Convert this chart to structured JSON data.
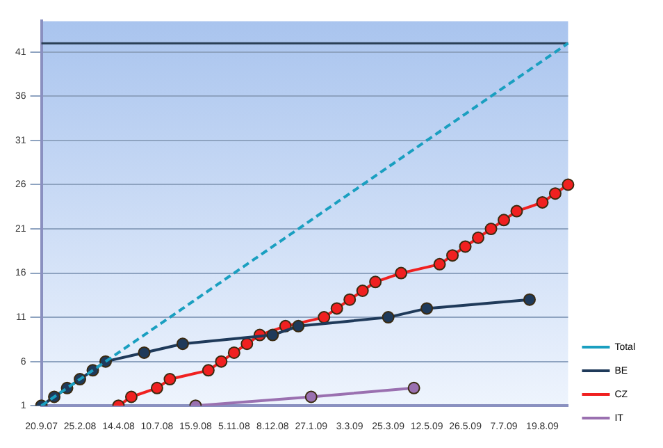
{
  "chart_data": {
    "type": "line",
    "categories": [
      "20.9.07",
      null,
      null,
      "25.2.08",
      null,
      null,
      "14.4.08",
      null,
      null,
      "10.7.08",
      null,
      null,
      "15.9.08",
      null,
      null,
      "5.11.08",
      null,
      null,
      "8.12.08",
      null,
      null,
      "27.1.09",
      null,
      null,
      "3.3.09",
      null,
      null,
      "25.3.09",
      null,
      null,
      "12.5.09",
      null,
      null,
      "26.5.09",
      null,
      null,
      "7.7.09",
      null,
      null,
      "19.8.09",
      null,
      null
    ],
    "series": [
      {
        "name": "Total",
        "color": "#1a9fc0",
        "marker": "none",
        "line_style": "dashed",
        "values": [
          1,
          2,
          3,
          4,
          5,
          6,
          7,
          8,
          9,
          10,
          11,
          12,
          13,
          14,
          15,
          16,
          17,
          18,
          19,
          20,
          21,
          22,
          23,
          24,
          25,
          26,
          27,
          28,
          29,
          30,
          31,
          32,
          33,
          34,
          35,
          36,
          37,
          38,
          39,
          40,
          41,
          42
        ]
      },
      {
        "name": "BE",
        "color": "#1f3a5a",
        "values": [
          1,
          2,
          3,
          4,
          5,
          6,
          null,
          null,
          7,
          null,
          null,
          8,
          null,
          null,
          null,
          null,
          null,
          null,
          9,
          null,
          10,
          null,
          null,
          null,
          null,
          null,
          null,
          11,
          null,
          null,
          12,
          null,
          null,
          null,
          null,
          null,
          null,
          null,
          13,
          null,
          null,
          null
        ]
      },
      {
        "name": "CZ",
        "color": "#f02020",
        "values": [
          null,
          null,
          null,
          null,
          null,
          null,
          1,
          2,
          null,
          3,
          4,
          null,
          null,
          5,
          6,
          7,
          8,
          9,
          null,
          10,
          null,
          null,
          11,
          12,
          13,
          14,
          15,
          null,
          16,
          null,
          null,
          17,
          18,
          19,
          20,
          21,
          22,
          23,
          null,
          24,
          25,
          26
        ]
      },
      {
        "name": "IT",
        "color": "#9a70b0",
        "values": [
          null,
          null,
          null,
          null,
          null,
          null,
          null,
          null,
          null,
          null,
          null,
          null,
          1,
          null,
          null,
          null,
          null,
          null,
          null,
          null,
          null,
          2,
          null,
          null,
          null,
          null,
          null,
          null,
          null,
          3,
          null,
          null,
          null,
          null,
          null,
          null,
          null,
          null,
          null,
          null,
          null,
          null
        ]
      }
    ],
    "ylim": [
      1,
      44.5
    ],
    "yticks": [
      1,
      6,
      11,
      16,
      21,
      26,
      31,
      36,
      41
    ],
    "ref_lines": [
      {
        "axis": "y",
        "value": 42,
        "color": "#2a3f55"
      }
    ],
    "grid": "y",
    "legend": "right",
    "marker": "circle"
  }
}
